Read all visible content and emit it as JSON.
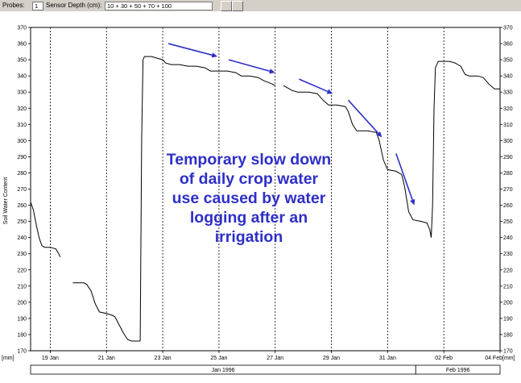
{
  "toolbar": {
    "probes_label": "Probes:",
    "probes_value": "1",
    "sensor_label": "Sensor Depth (cm):",
    "sensor_value": "10 + 30 + 50 + 70 + 100"
  },
  "colors": {
    "annotation": "#2e2fc8",
    "grid": "#000000",
    "series": "#000000"
  },
  "chart_data": {
    "type": "line",
    "title": "",
    "xlabel": "",
    "ylabel": "Soil Water Content",
    "unit_label": "[mm]",
    "ylim": [
      170,
      370
    ],
    "yticks": [
      170,
      180,
      190,
      200,
      210,
      220,
      230,
      240,
      250,
      260,
      270,
      280,
      290,
      300,
      310,
      320,
      330,
      340,
      350,
      360,
      370
    ],
    "xlim": [
      18.3,
      35.0
    ],
    "xticks": [
      {
        "x": 19,
        "label": "19 Jan"
      },
      {
        "x": 21,
        "label": "21 Jan"
      },
      {
        "x": 23,
        "label": "23 Jan"
      },
      {
        "x": 25,
        "label": "25 Jan"
      },
      {
        "x": 27,
        "label": "27 Jan"
      },
      {
        "x": 29,
        "label": "29 Jan"
      },
      {
        "x": 31,
        "label": "31 Jan"
      },
      {
        "x": 33,
        "label": "02 Feb"
      },
      {
        "x": 35,
        "label": "04 Feb"
      }
    ],
    "vgrid": [
      19,
      21,
      23,
      25,
      27,
      29,
      31,
      33,
      35
    ],
    "months": [
      {
        "label": "Jan 1996",
        "from": 18.3,
        "to": 32.0
      },
      {
        "label": "Feb 1996",
        "from": 32.0,
        "to": 35.0
      }
    ],
    "segments": [
      [
        [
          18.3,
          262
        ],
        [
          18.4,
          257
        ],
        [
          18.5,
          248
        ],
        [
          18.6,
          240
        ],
        [
          18.7,
          235
        ],
        [
          18.8,
          234
        ],
        [
          19.0,
          234
        ],
        [
          19.2,
          233
        ],
        [
          19.3,
          230
        ],
        [
          19.35,
          228
        ]
      ],
      [
        [
          19.8,
          212
        ],
        [
          20.0,
          212
        ],
        [
          20.2,
          212
        ],
        [
          20.3,
          211
        ],
        [
          20.45,
          207
        ],
        [
          20.6,
          199
        ],
        [
          20.75,
          194
        ],
        [
          21.0,
          193
        ],
        [
          21.2,
          192
        ],
        [
          21.3,
          191
        ],
        [
          21.45,
          186
        ],
        [
          21.6,
          181
        ],
        [
          21.75,
          177
        ],
        [
          21.9,
          176
        ],
        [
          22.2,
          176
        ]
      ],
      [
        [
          22.2,
          176
        ],
        [
          22.25,
          300
        ],
        [
          22.3,
          350
        ],
        [
          22.35,
          352
        ],
        [
          22.6,
          352
        ],
        [
          22.8,
          351
        ],
        [
          23.0,
          350
        ],
        [
          23.1,
          348
        ],
        [
          23.3,
          347
        ],
        [
          23.6,
          347
        ],
        [
          23.9,
          346
        ],
        [
          24.2,
          346
        ],
        [
          24.5,
          345
        ],
        [
          24.7,
          343
        ],
        [
          25.0,
          343
        ],
        [
          25.3,
          343
        ],
        [
          25.6,
          342
        ],
        [
          25.8,
          340
        ],
        [
          26.1,
          340
        ],
        [
          26.4,
          339
        ],
        [
          26.6,
          337
        ],
        [
          26.9,
          335
        ],
        [
          27.0,
          334
        ]
      ],
      [
        [
          27.3,
          334
        ],
        [
          27.4,
          333
        ],
        [
          27.6,
          331
        ],
        [
          27.8,
          330
        ],
        [
          28.2,
          330
        ],
        [
          28.5,
          329
        ],
        [
          28.7,
          325
        ],
        [
          28.9,
          322
        ],
        [
          29.2,
          322
        ],
        [
          29.5,
          321
        ],
        [
          29.6,
          318
        ],
        [
          29.75,
          310
        ],
        [
          29.9,
          306
        ],
        [
          30.3,
          306
        ],
        [
          30.6,
          305
        ],
        [
          30.7,
          300
        ],
        [
          30.85,
          288
        ],
        [
          31.0,
          282
        ],
        [
          31.3,
          281
        ],
        [
          31.5,
          279
        ],
        [
          31.6,
          272
        ],
        [
          31.75,
          256
        ],
        [
          31.9,
          251
        ],
        [
          32.2,
          250
        ],
        [
          32.4,
          249
        ],
        [
          32.5,
          245
        ],
        [
          32.55,
          240
        ],
        [
          32.6,
          260
        ],
        [
          32.65,
          320
        ],
        [
          32.7,
          345
        ],
        [
          32.8,
          349
        ],
        [
          33.2,
          349
        ],
        [
          33.4,
          348
        ],
        [
          33.6,
          346
        ],
        [
          33.75,
          341
        ],
        [
          33.9,
          340
        ],
        [
          34.2,
          340
        ],
        [
          34.4,
          339
        ],
        [
          34.6,
          335
        ],
        [
          34.8,
          332
        ],
        [
          35.0,
          332
        ]
      ]
    ],
    "arrows": [
      [
        [
          23.2,
          360
        ],
        [
          24.95,
          352
        ]
      ],
      [
        [
          25.35,
          350
        ],
        [
          27.0,
          342
        ]
      ],
      [
        [
          27.85,
          338
        ],
        [
          29.05,
          329
        ]
      ],
      [
        [
          29.6,
          325
        ],
        [
          30.8,
          302
        ]
      ],
      [
        [
          31.3,
          292
        ],
        [
          31.95,
          260
        ]
      ]
    ],
    "annotation_lines": [
      "Temporary slow down",
      "of daily crop water",
      "use caused by water",
      "logging after an",
      "irrigation"
    ]
  }
}
